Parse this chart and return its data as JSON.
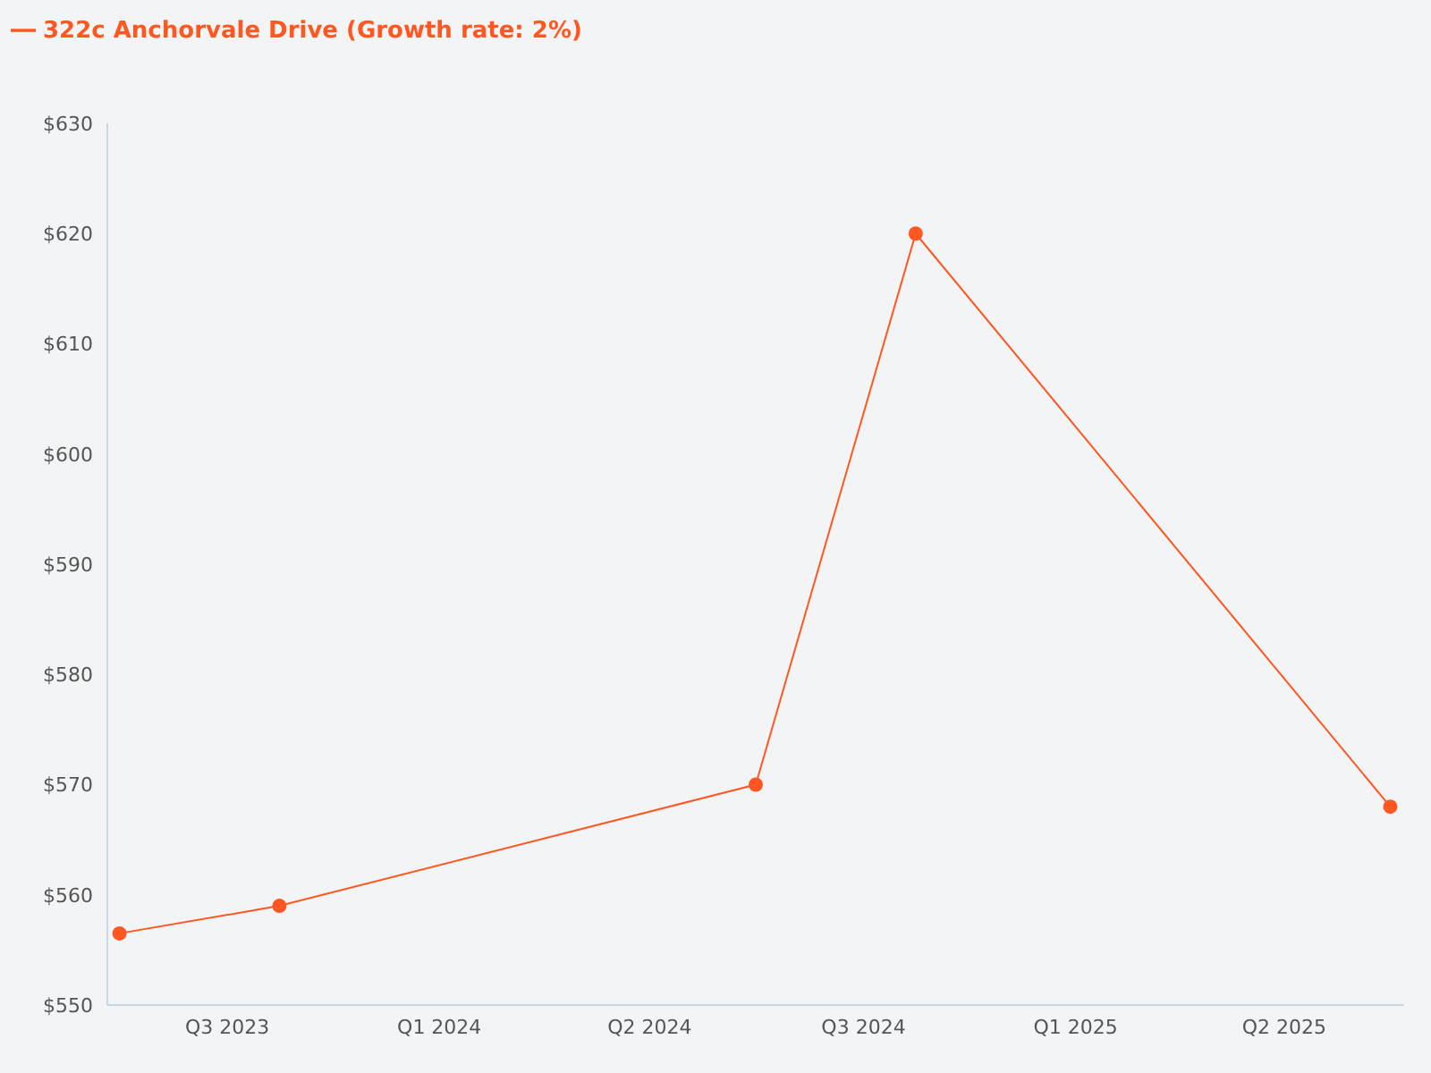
{
  "chart_data": {
    "type": "line",
    "x": [
      "2023-07",
      "2023-10",
      "2024-07",
      "2024-10",
      "2025-07"
    ],
    "series": [
      {
        "name": "322c Anchorvale Drive (Growth rate: 2%)",
        "color": "#ff5722",
        "values": [
          556.5,
          559,
          570,
          620,
          568
        ]
      }
    ],
    "xlim": [
      "2023-06-24",
      "2025-07-09"
    ],
    "xticks": [
      {
        "value": "2023-09",
        "label": "Q3 2023"
      },
      {
        "value": "2024-01",
        "label": "Q1 2024"
      },
      {
        "value": "2024-05",
        "label": "Q2 2024"
      },
      {
        "value": "2024-09",
        "label": "Q3 2024"
      },
      {
        "value": "2025-01",
        "label": "Q1 2025"
      },
      {
        "value": "2025-05",
        "label": "Q2 2025"
      }
    ],
    "ylim": [
      550,
      630
    ],
    "yticks": [
      {
        "value": 550,
        "label": "$550"
      },
      {
        "value": 560,
        "label": "$560"
      },
      {
        "value": 570,
        "label": "$570"
      },
      {
        "value": 580,
        "label": "$580"
      },
      {
        "value": 590,
        "label": "$590"
      },
      {
        "value": 600,
        "label": "$600"
      },
      {
        "value": 610,
        "label": "$610"
      },
      {
        "value": 620,
        "label": "$620"
      },
      {
        "value": 630,
        "label": "$630"
      }
    ],
    "grid": false,
    "legend": "top left",
    "marker": "circle",
    "line_style": "solid"
  }
}
